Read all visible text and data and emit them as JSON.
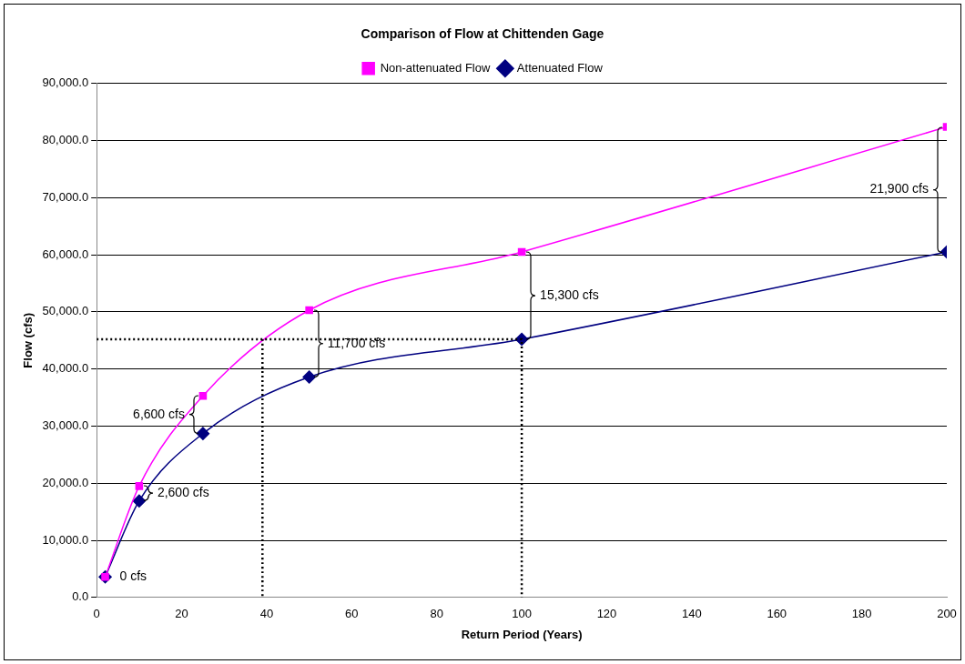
{
  "chart_data": {
    "type": "line",
    "title": "Comparison of Flow at Chittenden Gage",
    "xlabel": "Return Period (Years)",
    "ylabel": "Flow (cfs)",
    "x": [
      2,
      10,
      25,
      50,
      100,
      200
    ],
    "series": [
      {
        "name": "Attenuated Flow",
        "color": "#000080",
        "marker": "diamond",
        "values": [
          3600,
          16900,
          28700,
          38600,
          45200,
          60500
        ]
      },
      {
        "name": "Non-attenuated Flow",
        "color": "#ff00ff",
        "marker": "square",
        "values": [
          3600,
          19500,
          35300,
          50300,
          60500,
          82400
        ]
      },
      {
        "color": "#000000",
        "marker": "none",
        "line_style": "dotted",
        "x": [
          0,
          100,
          100
        ],
        "values": [
          45200,
          45200,
          0
        ]
      },
      {
        "color": "#000000",
        "marker": "none",
        "line_style": "dotted",
        "x": [
          39,
          39
        ],
        "values": [
          45200,
          0
        ]
      }
    ],
    "xlim": [
      0,
      200
    ],
    "xticks": [
      0,
      20,
      40,
      60,
      80,
      100,
      120,
      140,
      160,
      180,
      200
    ],
    "ylim": [
      0,
      90000
    ],
    "yticks": [
      {
        "value": 0,
        "label": "0.0"
      },
      {
        "value": 10000,
        "label": "10,000.0"
      },
      {
        "value": 20000,
        "label": "20,000.0"
      },
      {
        "value": 30000,
        "label": "30,000.0"
      },
      {
        "value": 40000,
        "label": "40,000.0"
      },
      {
        "value": 50000,
        "label": "50,000.0"
      },
      {
        "value": 60000,
        "label": "60,000.0"
      },
      {
        "value": 70000,
        "label": "70,000.0"
      },
      {
        "value": 80000,
        "label": "80,000.0"
      },
      {
        "value": 90000,
        "label": "90,000.0"
      }
    ],
    "annotations": [
      "0 cfs",
      "2,600 cfs",
      "6,600 cfs",
      "11,700 cfs",
      "15,300 cfs",
      "21,900 cfs"
    ],
    "grid": "y",
    "legend": "top"
  }
}
